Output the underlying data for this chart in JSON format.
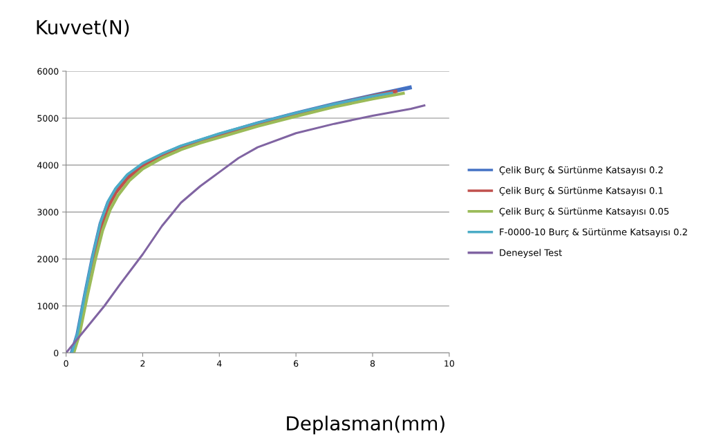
{
  "chart_data": {
    "type": "line",
    "xlabel": "Deplasman(mm)",
    "ylabel": "Kuvvet(N)",
    "xlim": [
      0,
      10
    ],
    "xticks": [
      0,
      2,
      4,
      6,
      8,
      10
    ],
    "ylim": [
      0,
      6000
    ],
    "yticks": [
      0,
      1000,
      2000,
      3000,
      4000,
      5000,
      6000
    ],
    "grid": "y",
    "legend": "right",
    "marker": "none",
    "line_style": "solid",
    "series": [
      {
        "name": "Çelik Burç & Sürtünme Katsayısı 0.2",
        "color": "#4472c4",
        "x": [
          0.15,
          0.3,
          0.5,
          0.7,
          0.9,
          1.1,
          1.3,
          1.6,
          2.0,
          2.5,
          3.0,
          3.5,
          4.0,
          5.0,
          6.0,
          7.0,
          8.0,
          8.97
        ],
        "values": [
          0,
          400,
          1250,
          2050,
          2750,
          3200,
          3480,
          3770,
          4010,
          4220,
          4390,
          4520,
          4650,
          4890,
          5100,
          5300,
          5480,
          5650
        ]
      },
      {
        "name": "Çelik Burç & Sürtünme Katsayısı 0.1",
        "color": "#c0504d",
        "x": [
          0.5,
          0.7,
          0.9,
          1.1,
          1.3,
          1.6,
          2.0,
          2.5,
          3.0,
          3.5,
          4.0,
          5.0,
          6.0,
          7.0,
          8.0,
          8.6
        ],
        "values": [
          1150,
          1950,
          2650,
          3120,
          3420,
          3720,
          3970,
          4190,
          4370,
          4500,
          4630,
          4870,
          5090,
          5290,
          5470,
          5570
        ]
      },
      {
        "name": "Çelik Burç & Sürtünme Katsayısı 0.05",
        "color": "#9bbb59",
        "x": [
          0.2,
          0.35,
          0.55,
          0.75,
          0.95,
          1.15,
          1.35,
          1.65,
          2.0,
          2.5,
          3.0,
          3.5,
          4.0,
          5.0,
          6.0,
          7.0,
          8.0,
          8.8
        ],
        "values": [
          0,
          400,
          1200,
          1950,
          2600,
          3050,
          3350,
          3670,
          3920,
          4150,
          4330,
          4470,
          4590,
          4830,
          5040,
          5240,
          5410,
          5530
        ]
      },
      {
        "name": "F-0000-10 Burç & Sürtünme Katsayısı 0.2",
        "color": "#4bacc6",
        "x": [
          0.15,
          0.3,
          0.5,
          0.7,
          0.9,
          1.1,
          1.3,
          1.6,
          2.0,
          2.5,
          3.0,
          3.5,
          4.0,
          5.0,
          6.0,
          7.0,
          8.0,
          8.5
        ],
        "values": [
          0,
          420,
          1280,
          2080,
          2780,
          3230,
          3510,
          3800,
          4040,
          4240,
          4410,
          4540,
          4670,
          4900,
          5110,
          5300,
          5470,
          5540
        ]
      },
      {
        "name": "Deneysel Test",
        "color": "#8064a2",
        "x": [
          0.0,
          0.5,
          1.0,
          1.4,
          2.0,
          2.5,
          3.0,
          3.5,
          4.0,
          4.5,
          5.0,
          6.0,
          7.0,
          8.0,
          9.0,
          9.35
        ],
        "values": [
          0,
          500,
          1000,
          1450,
          2100,
          2700,
          3200,
          3550,
          3850,
          4150,
          4380,
          4680,
          4880,
          5050,
          5200,
          5270
        ]
      }
    ]
  }
}
